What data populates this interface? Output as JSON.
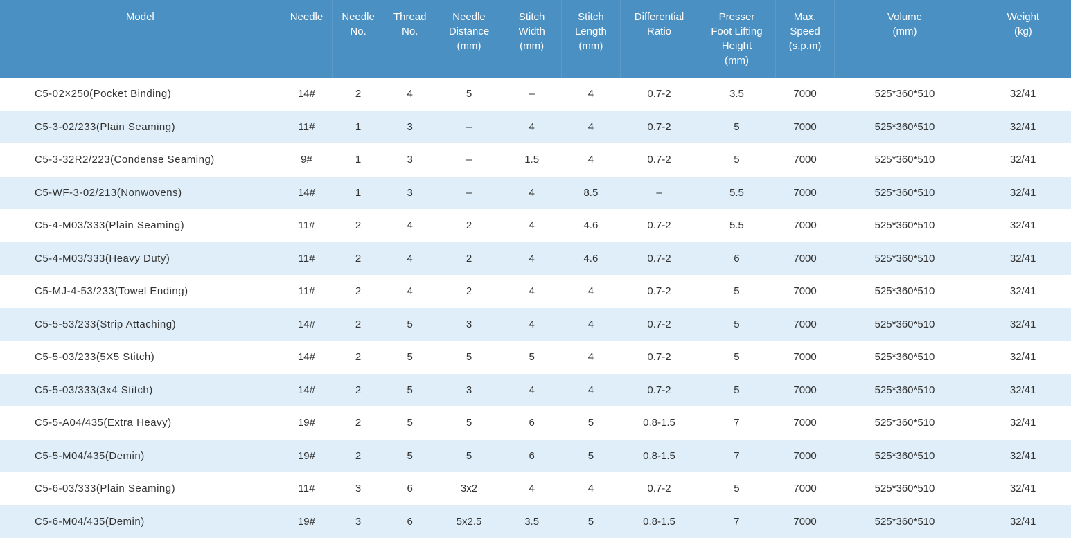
{
  "table": {
    "type": "table",
    "header_bg": "#4b90c3",
    "header_text_color": "#ffffff",
    "row_even_bg": "#dfeef8",
    "row_odd_bg": "#ffffff",
    "body_text_color": "#333333",
    "font_size": 15,
    "columns": [
      {
        "key": "model",
        "label": "Model",
        "class": "model-col"
      },
      {
        "key": "needle",
        "label": "Needle",
        "class": "needle-col"
      },
      {
        "key": "needle_no",
        "label": "Needle\nNo.",
        "class": "needleno-col"
      },
      {
        "key": "thread_no",
        "label": "Thread\nNo.",
        "class": "threadno-col"
      },
      {
        "key": "needle_dist",
        "label": "Needle\nDistance\n(mm)",
        "class": "needledist-col"
      },
      {
        "key": "stitch_w",
        "label": "Stitch\nWidth\n(mm)",
        "class": "stitchw-col"
      },
      {
        "key": "stitch_l",
        "label": "Stitch\nLength\n(mm)",
        "class": "stitchl-col"
      },
      {
        "key": "diff_ratio",
        "label": "Differential\nRatio",
        "class": "diff-col"
      },
      {
        "key": "presser",
        "label": "Presser\nFoot Lifting\nHeight\n(mm)",
        "class": "presser-col"
      },
      {
        "key": "speed",
        "label": "Max.\nSpeed\n(s.p.m)",
        "class": "speed-col"
      },
      {
        "key": "volume",
        "label": "Volume\n(mm)",
        "class": "volume-col"
      },
      {
        "key": "weight",
        "label": "Weight\n(kg)",
        "class": "weight-col"
      }
    ],
    "rows": [
      {
        "model": "C5-02×250(Pocket Binding)",
        "needle": "14#",
        "needle_no": "2",
        "thread_no": "4",
        "needle_dist": "5",
        "stitch_w": "–",
        "stitch_l": "4",
        "diff_ratio": "0.7-2",
        "presser": "3.5",
        "speed": "7000",
        "volume": "525*360*510",
        "weight": "32/41"
      },
      {
        "model": "C5-3-02/233(Plain Seaming)",
        "needle": "11#",
        "needle_no": "1",
        "thread_no": "3",
        "needle_dist": "–",
        "stitch_w": "4",
        "stitch_l": "4",
        "diff_ratio": "0.7-2",
        "presser": "5",
        "speed": "7000",
        "volume": "525*360*510",
        "weight": "32/41"
      },
      {
        "model": "C5-3-32R2/223(Condense Seaming)",
        "needle": "9#",
        "needle_no": "1",
        "thread_no": "3",
        "needle_dist": "–",
        "stitch_w": "1.5",
        "stitch_l": "4",
        "diff_ratio": "0.7-2",
        "presser": "5",
        "speed": "7000",
        "volume": "525*360*510",
        "weight": "32/41"
      },
      {
        "model": "C5-WF-3-02/213(Nonwovens)",
        "needle": "14#",
        "needle_no": "1",
        "thread_no": "3",
        "needle_dist": "–",
        "stitch_w": "4",
        "stitch_l": "8.5",
        "diff_ratio": "–",
        "presser": "5.5",
        "speed": "7000",
        "volume": "525*360*510",
        "weight": "32/41"
      },
      {
        "model": "C5-4-M03/333(Plain Seaming)",
        "needle": "11#",
        "needle_no": "2",
        "thread_no": "4",
        "needle_dist": "2",
        "stitch_w": "4",
        "stitch_l": "4.6",
        "diff_ratio": "0.7-2",
        "presser": "5.5",
        "speed": "7000",
        "volume": "525*360*510",
        "weight": "32/41"
      },
      {
        "model": "C5-4-M03/333(Heavy Duty)",
        "needle": "11#",
        "needle_no": "2",
        "thread_no": "4",
        "needle_dist": "2",
        "stitch_w": "4",
        "stitch_l": "4.6",
        "diff_ratio": "0.7-2",
        "presser": "6",
        "speed": "7000",
        "volume": "525*360*510",
        "weight": "32/41"
      },
      {
        "model": "C5-MJ-4-53/233(Towel Ending)",
        "needle": "11#",
        "needle_no": "2",
        "thread_no": "4",
        "needle_dist": "2",
        "stitch_w": "4",
        "stitch_l": "4",
        "diff_ratio": "0.7-2",
        "presser": "5",
        "speed": "7000",
        "volume": "525*360*510",
        "weight": "32/41"
      },
      {
        "model": "C5-5-53/233(Strip Attaching)",
        "needle": "14#",
        "needle_no": "2",
        "thread_no": "5",
        "needle_dist": "3",
        "stitch_w": "4",
        "stitch_l": "4",
        "diff_ratio": "0.7-2",
        "presser": "5",
        "speed": "7000",
        "volume": "525*360*510",
        "weight": "32/41"
      },
      {
        "model": "C5-5-03/233(5X5 Stitch)",
        "needle": "14#",
        "needle_no": "2",
        "thread_no": "5",
        "needle_dist": "5",
        "stitch_w": "5",
        "stitch_l": "4",
        "diff_ratio": "0.7-2",
        "presser": "5",
        "speed": "7000",
        "volume": "525*360*510",
        "weight": "32/41"
      },
      {
        "model": "C5-5-03/333(3x4 Stitch)",
        "needle": "14#",
        "needle_no": "2",
        "thread_no": "5",
        "needle_dist": "3",
        "stitch_w": "4",
        "stitch_l": "4",
        "diff_ratio": "0.7-2",
        "presser": "5",
        "speed": "7000",
        "volume": "525*360*510",
        "weight": "32/41"
      },
      {
        "model": "C5-5-A04/435(Extra Heavy)",
        "needle": "19#",
        "needle_no": "2",
        "thread_no": "5",
        "needle_dist": "5",
        "stitch_w": "6",
        "stitch_l": "5",
        "diff_ratio": "0.8-1.5",
        "presser": "7",
        "speed": "7000",
        "volume": "525*360*510",
        "weight": "32/41"
      },
      {
        "model": "C5-5-M04/435(Demin)",
        "needle": "19#",
        "needle_no": "2",
        "thread_no": "5",
        "needle_dist": "5",
        "stitch_w": "6",
        "stitch_l": "5",
        "diff_ratio": "0.8-1.5",
        "presser": "7",
        "speed": "7000",
        "volume": "525*360*510",
        "weight": "32/41"
      },
      {
        "model": "C5-6-03/333(Plain Seaming)",
        "needle": "11#",
        "needle_no": "3",
        "thread_no": "6",
        "needle_dist": "3x2",
        "stitch_w": "4",
        "stitch_l": "4",
        "diff_ratio": "0.7-2",
        "presser": "5",
        "speed": "7000",
        "volume": "525*360*510",
        "weight": "32/41"
      },
      {
        "model": "C5-6-M04/435(Demin)",
        "needle": "19#",
        "needle_no": "3",
        "thread_no": "6",
        "needle_dist": "5x2.5",
        "stitch_w": "3.5",
        "stitch_l": "5",
        "diff_ratio": "0.8-1.5",
        "presser": "7",
        "speed": "7000",
        "volume": "525*360*510",
        "weight": "32/41"
      }
    ]
  }
}
